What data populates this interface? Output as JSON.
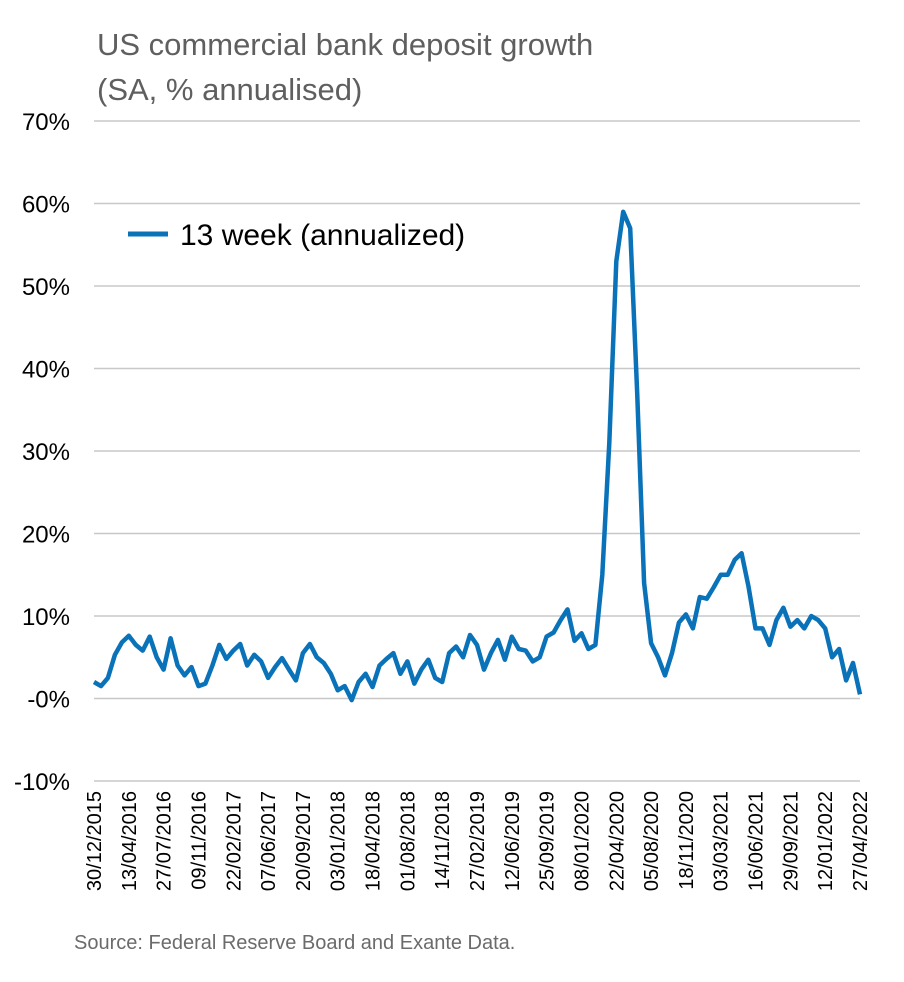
{
  "chart_data": {
    "type": "line",
    "title": [
      "US commercial bank deposit growth",
      "(SA, % annualised)"
    ],
    "source": "Source: Federal Reserve Board and Exante Data.",
    "xlabel": "",
    "ylabel": "",
    "ylim": [
      -10,
      70
    ],
    "yticks": [
      70,
      60,
      50,
      40,
      30,
      20,
      10,
      0,
      -10
    ],
    "ytick_labels": [
      "70%",
      "60%",
      "50%",
      "40%",
      "30%",
      "20%",
      "10%",
      "-0%",
      "-10%"
    ],
    "grid": "horizontal",
    "legend_placement": "top-left",
    "x_range": [
      "30/12/2015",
      "27/04/2022"
    ],
    "xtick_labels": [
      "30/12/2015",
      "13/04/2016",
      "27/07/2016",
      "09/11/2016",
      "22/02/2017",
      "07/06/2017",
      "20/09/2017",
      "03/01/2018",
      "18/04/2018",
      "01/08/2018",
      "14/11/2018",
      "27/02/2019",
      "12/06/2019",
      "25/09/2019",
      "08/01/2020",
      "22/04/2020",
      "05/08/2020",
      "18/11/2020",
      "03/03/2021",
      "16/06/2021",
      "29/09/2021",
      "12/01/2022",
      "27/04/2022"
    ],
    "series": [
      {
        "name": "13 week (annualized)",
        "color": "#0a72b8",
        "values": [
          2.0,
          1.5,
          2.5,
          5.3,
          6.8,
          7.6,
          6.5,
          5.8,
          7.5,
          5.0,
          3.5,
          7.3,
          4.0,
          2.8,
          3.8,
          1.5,
          1.8,
          4.0,
          6.5,
          4.8,
          5.8,
          6.6,
          4.0,
          5.3,
          4.5,
          2.5,
          3.8,
          4.9,
          3.5,
          2.2,
          5.5,
          6.6,
          5.0,
          4.3,
          3.0,
          1.0,
          1.5,
          -0.2,
          2.0,
          3.0,
          1.4,
          4.0,
          4.8,
          5.5,
          3.0,
          4.5,
          1.8,
          3.5,
          4.7,
          2.5,
          2.0,
          5.5,
          6.3,
          5.0,
          7.7,
          6.5,
          3.5,
          5.5,
          7.1,
          4.7,
          7.5,
          6.0,
          5.8,
          4.5,
          5.0,
          7.5,
          8.0,
          9.5,
          10.8,
          7.0,
          7.9,
          6.0,
          6.5,
          15.0,
          31.0,
          53.0,
          59.0,
          57.0,
          37.0,
          14.0,
          6.7,
          5.0,
          2.8,
          5.5,
          9.2,
          10.2,
          8.5,
          12.3,
          12.1,
          13.5,
          15.0,
          15.0,
          16.8,
          17.6,
          13.5,
          8.5,
          8.5,
          6.5,
          9.5,
          11.0,
          8.7,
          9.5,
          8.5,
          10.0,
          9.5,
          8.5,
          5.0,
          6.0,
          2.2,
          4.3,
          0.5
        ]
      }
    ]
  }
}
